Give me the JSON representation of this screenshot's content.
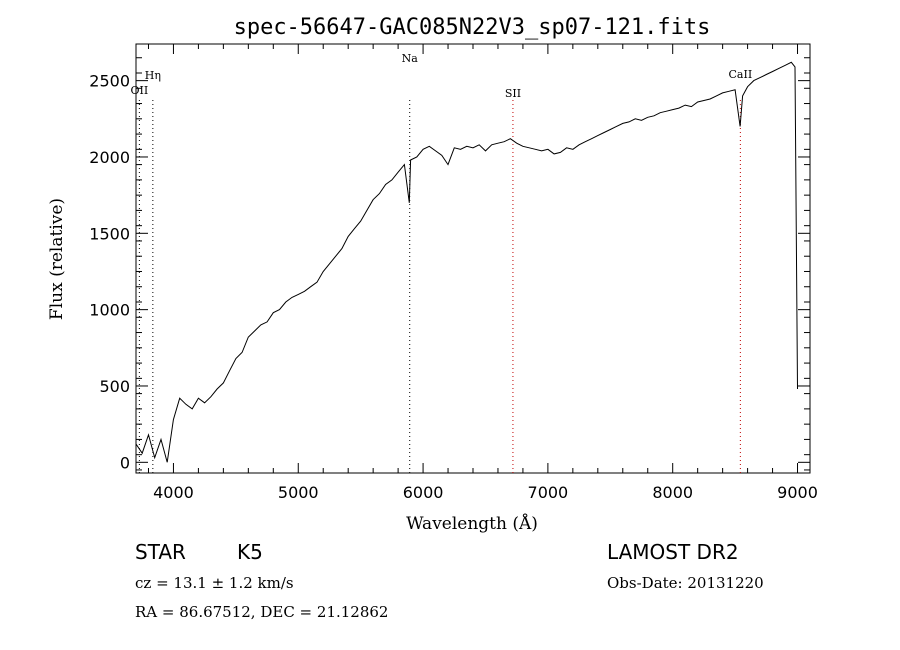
{
  "chart_data": {
    "type": "line",
    "title": "spec-56647-GAC085N22V3_sp07-121.fits",
    "xlabel": "Wavelength (Å)",
    "ylabel": "Flux (relative)",
    "xlim": [
      3700,
      9100
    ],
    "ylim": [
      -70,
      2740
    ],
    "x_ticks": [
      4000,
      5000,
      6000,
      7000,
      8000,
      9000
    ],
    "y_ticks": [
      0,
      500,
      1000,
      1500,
      2000,
      2500
    ],
    "grid": false,
    "series": [
      {
        "color": "#000000",
        "x": [
          3700,
          3750,
          3800,
          3850,
          3900,
          3950,
          4000,
          4050,
          4100,
          4150,
          4200,
          4250,
          4300,
          4350,
          4400,
          4450,
          4500,
          4550,
          4600,
          4650,
          4700,
          4750,
          4800,
          4850,
          4900,
          4950,
          5000,
          5050,
          5100,
          5150,
          5200,
          5250,
          5300,
          5350,
          5400,
          5450,
          5500,
          5550,
          5600,
          5650,
          5700,
          5750,
          5800,
          5850,
          5890,
          5900,
          5950,
          6000,
          6050,
          6100,
          6150,
          6200,
          6250,
          6300,
          6350,
          6400,
          6450,
          6500,
          6550,
          6600,
          6650,
          6700,
          6750,
          6800,
          6850,
          6900,
          6950,
          7000,
          7050,
          7100,
          7150,
          7200,
          7250,
          7300,
          7350,
          7400,
          7450,
          7500,
          7550,
          7600,
          7650,
          7700,
          7750,
          7800,
          7850,
          7900,
          7950,
          8000,
          8050,
          8100,
          8150,
          8200,
          8250,
          8300,
          8350,
          8400,
          8450,
          8500,
          8540,
          8560,
          8600,
          8650,
          8700,
          8750,
          8800,
          8850,
          8900,
          8950,
          8980,
          9000
        ],
        "y": [
          120,
          60,
          180,
          30,
          150,
          0,
          280,
          420,
          380,
          350,
          420,
          390,
          430,
          480,
          520,
          600,
          680,
          720,
          820,
          860,
          900,
          920,
          980,
          1000,
          1050,
          1080,
          1100,
          1120,
          1150,
          1180,
          1250,
          1300,
          1350,
          1400,
          1480,
          1530,
          1580,
          1650,
          1720,
          1760,
          1820,
          1850,
          1900,
          1950,
          1700,
          1980,
          2000,
          2050,
          2070,
          2040,
          2010,
          1950,
          2060,
          2050,
          2070,
          2060,
          2080,
          2040,
          2080,
          2090,
          2100,
          2120,
          2090,
          2070,
          2060,
          2050,
          2040,
          2050,
          2020,
          2030,
          2060,
          2050,
          2080,
          2100,
          2120,
          2140,
          2160,
          2180,
          2200,
          2220,
          2230,
          2250,
          2240,
          2260,
          2270,
          2290,
          2300,
          2310,
          2320,
          2340,
          2330,
          2360,
          2370,
          2380,
          2400,
          2420,
          2430,
          2440,
          2200,
          2400,
          2460,
          2500,
          2520,
          2540,
          2560,
          2580,
          2600,
          2620,
          2590,
          480
        ]
      }
    ],
    "lines": [
      {
        "label": "OII",
        "x": 3727,
        "color": "#000000"
      },
      {
        "label": "Hη",
        "x": 3835,
        "color": "#000000"
      },
      {
        "label": "Na",
        "x": 5893,
        "color": "#000000"
      },
      {
        "label": "SII",
        "x": 6720,
        "color": "#c00000"
      },
      {
        "label": "CaII",
        "x": 8542,
        "color": "#c00000"
      }
    ]
  },
  "info": {
    "class_label": "STAR",
    "subclass_label": "K5",
    "survey": "LAMOST DR2",
    "cz": "cz = 13.1 ± 1.2 km/s",
    "obs_date": "Obs-Date: 20131220",
    "radec": "RA =  86.67512, DEC =  21.12862"
  }
}
